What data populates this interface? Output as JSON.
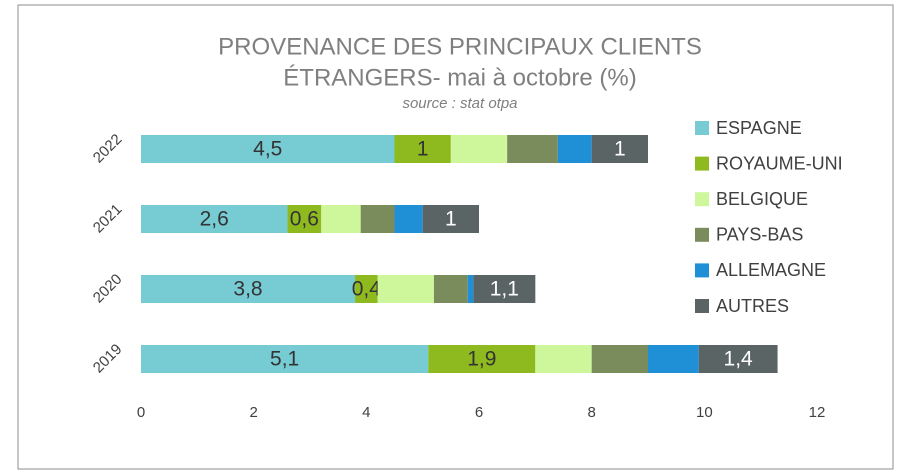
{
  "chart_data": {
    "type": "bar",
    "orientation": "horizontal",
    "stacked": true,
    "title": [
      "PROVENANCE DES PRINCIPAUX CLIENTS",
      "ÉTRANGERS- mai à octobre (%)"
    ],
    "subtitle": "source : stat otpa",
    "categories": [
      "2019",
      "2020",
      "2021",
      "2022"
    ],
    "series": [
      {
        "name": "ESPAGNE",
        "color": "#77cbd3",
        "values": [
          5.1,
          3.8,
          2.6,
          4.5
        ],
        "value_labels": [
          "5,1",
          "3,8",
          "2,6",
          "4,5"
        ]
      },
      {
        "name": "ROYAUME-UNI",
        "color": "#8fba1f",
        "values": [
          1.9,
          0.4,
          0.6,
          1
        ],
        "value_labels": [
          "1,9",
          "0,4",
          "0,6",
          "1"
        ]
      },
      {
        "name": "BELGIQUE",
        "color": "#cdf79a",
        "values": [
          1.0,
          1.0,
          0.7,
          1.0
        ]
      },
      {
        "name": "PAYS-BAS",
        "color": "#7b8c5c",
        "values": [
          1.0,
          0.6,
          0.6,
          0.9
        ]
      },
      {
        "name": "ALLEMAGNE",
        "color": "#1f8fd6",
        "values": [
          0.9,
          0.1,
          0.5,
          0.6
        ]
      },
      {
        "name": "AUTRES",
        "color": "#5a6464",
        "values": [
          1.4,
          1.1,
          1,
          1
        ],
        "value_labels": [
          "1,4",
          "1,1",
          "1",
          "1"
        ]
      }
    ],
    "xlim": [
      0,
      12
    ],
    "xticks": [
      0,
      2,
      4,
      6,
      8,
      10,
      12
    ],
    "grid": false,
    "legend": "right"
  }
}
